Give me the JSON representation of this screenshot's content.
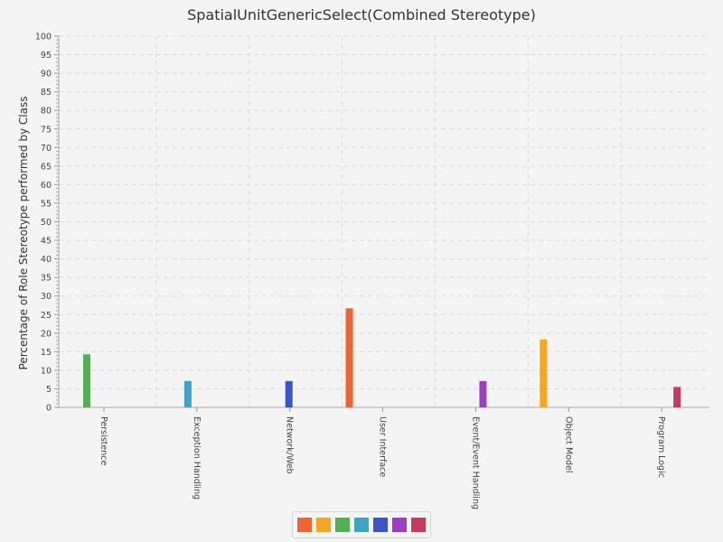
{
  "chart_data": {
    "type": "bar",
    "title": "SpatialUnitGenericSelect(Combined Stereotype)",
    "xlabel": "",
    "ylabel": "Percentage of Role Stereotype performed by Class",
    "ylim": [
      0,
      100
    ],
    "ytick_step": 5,
    "grid": true,
    "legend_position": "bottom",
    "categories": [
      "Persistence",
      "Exception Handling",
      "Network/Web",
      "User Interface",
      "Event/Event Handling",
      "Object Model",
      "Program Logic"
    ],
    "series": [
      {
        "color": "#f06432",
        "values": [
          0,
          0,
          0,
          26.7,
          0,
          0,
          0
        ]
      },
      {
        "color": "#f5a623",
        "values": [
          0,
          0,
          0,
          0,
          0,
          18.3,
          0
        ]
      },
      {
        "color": "#55b055",
        "values": [
          14.3,
          0,
          0,
          0,
          0,
          0,
          0
        ]
      },
      {
        "color": "#3fa4c4",
        "values": [
          0,
          7.1,
          0,
          0,
          0,
          0,
          0
        ]
      },
      {
        "color": "#3b55c8",
        "values": [
          0,
          0,
          7.1,
          0,
          0,
          0,
          0
        ]
      },
      {
        "color": "#9a3fc4",
        "values": [
          0,
          0,
          0,
          0,
          7.1,
          0,
          0
        ]
      },
      {
        "color": "#c43d5e",
        "values": [
          0,
          0,
          0,
          0,
          0,
          0,
          5.5
        ]
      }
    ]
  }
}
